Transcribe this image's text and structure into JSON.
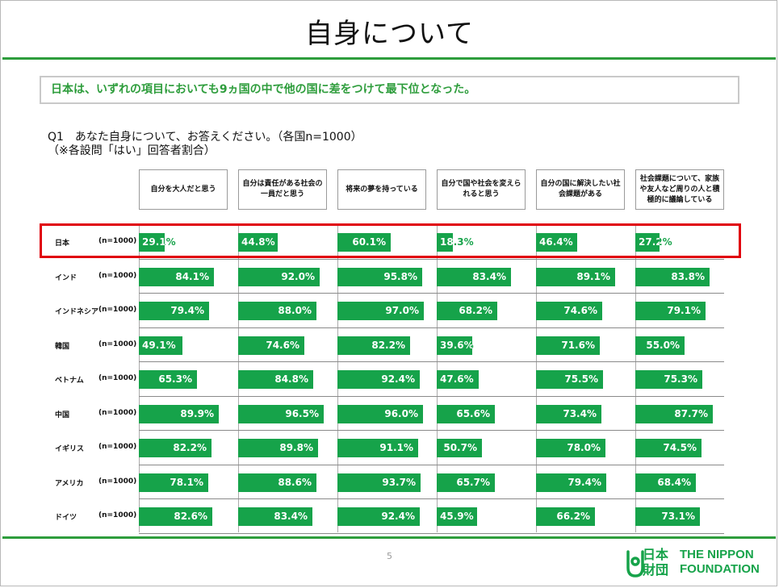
{
  "title": "自身について",
  "summary": "日本は、いずれの項目においても9ヵ国の中で他の国に差をつけて最下位となった。",
  "question": "Q1　あなた自身について、お答えください。（各国n=1000）",
  "note": "（※各設問「はい」回答者割合）",
  "page_number": "5",
  "logo": {
    "jp_line1": "日本",
    "jp_line2": "財団",
    "en_line1": "THE NIPPON",
    "en_line2": "FOUNDATION",
    "color": "#16a34a"
  },
  "colors": {
    "bar": "#16a34a",
    "accent": "#2e9d3c",
    "highlight": "#e0000a"
  },
  "chart_data": {
    "type": "bar",
    "orientation": "horizontal",
    "xlim": [
      0,
      100
    ],
    "unit": "%",
    "highlighted_row": "日本",
    "columns": [
      "自分を大人だと思う",
      "自分は責任がある社会の一員だと思う",
      "将来の夢を持っている",
      "自分で国や社会を変えられると思う",
      "自分の国に解決したい社会課題がある",
      "社会課題について、家族や友人など周りの人と積極的に議論している"
    ],
    "rows": [
      {
        "country": "日本",
        "n": "(n=1000)",
        "values": [
          29.1,
          44.8,
          60.1,
          18.3,
          46.4,
          27.2
        ],
        "labels": [
          "29.1%",
          "44.8%",
          "60.1%",
          "18.3%",
          "46.4%",
          "27.2%"
        ]
      },
      {
        "country": "インド",
        "n": "(n=1000)",
        "values": [
          84.1,
          92.0,
          95.8,
          83.4,
          89.1,
          83.8
        ],
        "labels": [
          "84.1%",
          "92.0%",
          "95.8%",
          "83.4%",
          "89.1%",
          "83.8%"
        ]
      },
      {
        "country": "インドネシア",
        "n": "(n=1000)",
        "values": [
          79.4,
          88.0,
          97.0,
          68.2,
          74.6,
          79.1
        ],
        "labels": [
          "79.4%",
          "88.0%",
          "97.0%",
          "68.2%",
          "74.6%",
          "79.1%"
        ]
      },
      {
        "country": "韓国",
        "n": "(n=1000)",
        "values": [
          49.1,
          74.6,
          82.2,
          39.6,
          71.6,
          55.0
        ],
        "labels": [
          "49.1%",
          "74.6%",
          "82.2%",
          "39.6%",
          "71.6%",
          "55.0%"
        ]
      },
      {
        "country": "ベトナム",
        "n": "(n=1000)",
        "values": [
          65.3,
          84.8,
          92.4,
          47.6,
          75.5,
          75.3
        ],
        "labels": [
          "65.3%",
          "84.8%",
          "92.4%",
          "47.6%",
          "75.5%",
          "75.3%"
        ]
      },
      {
        "country": "中国",
        "n": "(n=1000)",
        "values": [
          89.9,
          96.5,
          96.0,
          65.6,
          73.4,
          87.7
        ],
        "labels": [
          "89.9%",
          "96.5%",
          "96.0%",
          "65.6%",
          "73.4%",
          "87.7%"
        ]
      },
      {
        "country": "イギリス",
        "n": "(n=1000)",
        "values": [
          82.2,
          89.8,
          91.1,
          50.7,
          78.0,
          74.5
        ],
        "labels": [
          "82.2%",
          "89.8%",
          "91.1%",
          "50.7%",
          "78.0%",
          "74.5%"
        ]
      },
      {
        "country": "アメリカ",
        "n": "(n=1000)",
        "values": [
          78.1,
          88.6,
          93.7,
          65.7,
          79.4,
          68.4
        ],
        "labels": [
          "78.1%",
          "88.6%",
          "93.7%",
          "65.7%",
          "79.4%",
          "68.4%"
        ]
      },
      {
        "country": "ドイツ",
        "n": "(n=1000)",
        "values": [
          82.6,
          83.4,
          92.4,
          45.9,
          66.2,
          73.1
        ],
        "labels": [
          "82.6%",
          "83.4%",
          "92.4%",
          "45.9%",
          "66.2%",
          "73.1%"
        ]
      }
    ]
  }
}
